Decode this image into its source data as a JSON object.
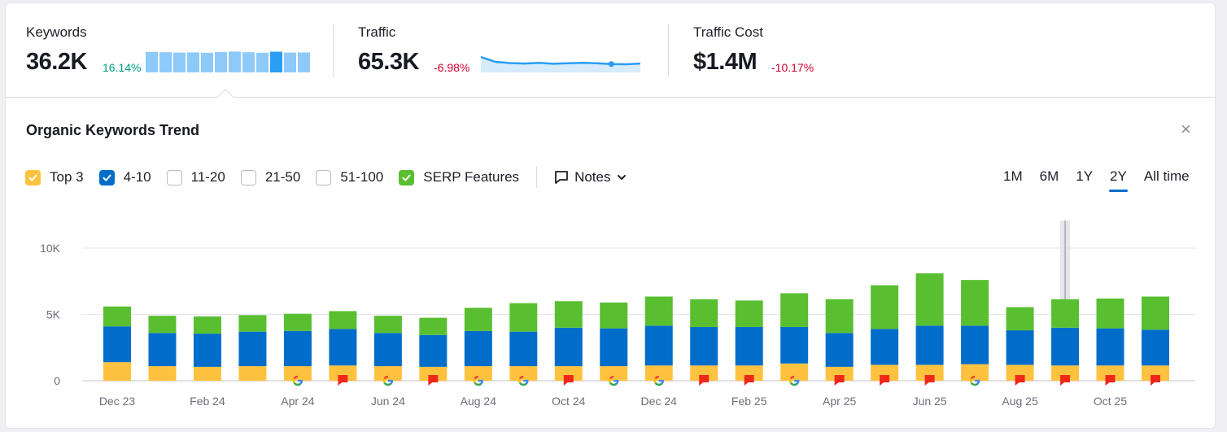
{
  "metrics": {
    "keywords": {
      "label": "Keywords",
      "value": "36.2K",
      "delta": "16.14%",
      "sparkline": [
        11,
        10.8,
        10.6,
        10.7,
        10.5,
        10.9,
        11.2,
        10.8,
        10.5,
        11.1,
        10.6,
        10.7
      ],
      "sparkline_highlight_index": 9
    },
    "traffic": {
      "label": "Traffic",
      "value": "65.3K",
      "delta": "-6.98%",
      "sparkline": [
        62,
        60,
        59.5,
        59.3,
        59.6,
        59.2,
        59.4,
        59.6,
        59.4,
        59.1,
        59.0,
        59.3
      ],
      "sparkline_dot_index": 9
    },
    "traffic_cost": {
      "label": "Traffic Cost",
      "value": "$1.4M",
      "delta": "-10.17%"
    }
  },
  "section": {
    "title": "Organic Keywords Trend",
    "close_symbol": "×"
  },
  "legend": [
    {
      "label": "Top 3",
      "checked": true,
      "color": "#ffc23f"
    },
    {
      "label": "4-10",
      "checked": true,
      "color": "#006dca"
    },
    {
      "label": "11-20",
      "checked": false,
      "color": "#ffffff"
    },
    {
      "label": "21-50",
      "checked": false,
      "color": "#ffffff"
    },
    {
      "label": "51-100",
      "checked": false,
      "color": "#ffffff"
    },
    {
      "label": "SERP Features",
      "checked": true,
      "color": "#59bf31"
    }
  ],
  "notes": {
    "label": "Notes"
  },
  "ranges": [
    {
      "label": "1M",
      "active": false
    },
    {
      "label": "6M",
      "active": false
    },
    {
      "label": "1Y",
      "active": false
    },
    {
      "label": "2Y",
      "active": true
    },
    {
      "label": "All time",
      "active": false
    }
  ],
  "chart_data": {
    "type": "bar",
    "stacked": true,
    "title": "Organic Keywords Trend",
    "ylim": [
      0,
      10000
    ],
    "yticks": [
      0,
      5000,
      10000
    ],
    "ytick_labels": [
      "0",
      "5K",
      "10K"
    ],
    "xtick_labels": [
      "Dec 23",
      "Feb 24",
      "Apr 24",
      "Jun 24",
      "Aug 24",
      "Oct 24",
      "Dec 24",
      "Feb 25",
      "Apr 25",
      "Jun 25",
      "Aug 25",
      "Oct 25"
    ],
    "xtick_every": 2,
    "colors": {
      "top3": "#ffc23f",
      "pos4_10": "#006dca",
      "serp": "#59bf31"
    },
    "series": [
      {
        "name": "Top 3",
        "values": [
          1400,
          1100,
          1050,
          1100,
          1100,
          1150,
          1100,
          1050,
          1100,
          1100,
          1100,
          1100,
          1150,
          1150,
          1150,
          1300,
          1050,
          1200,
          1200,
          1250,
          1200,
          1150,
          1150,
          1150
        ]
      },
      {
        "name": "4-10",
        "values": [
          2700,
          2500,
          2500,
          2600,
          2650,
          2750,
          2500,
          2400,
          2650,
          2600,
          2900,
          2850,
          3000,
          2900,
          2900,
          2750,
          2550,
          2700,
          2950,
          2900,
          2600,
          2850,
          2800,
          2700
        ]
      },
      {
        "name": "SERP Features",
        "values": [
          1500,
          1300,
          1300,
          1250,
          1300,
          1350,
          1300,
          1300,
          1750,
          2150,
          2000,
          1950,
          2200,
          2100,
          2000,
          2550,
          2550,
          3300,
          3950,
          3450,
          1750,
          2150,
          2250,
          2500
        ]
      }
    ],
    "annotations": [
      "",
      "",
      "",
      "",
      "google",
      "flag",
      "google",
      "flag",
      "google",
      "google",
      "flag",
      "google",
      "google",
      "flag",
      "flag",
      "google",
      "flag",
      "flag",
      "flag",
      "google",
      "flag",
      "flag",
      "flag",
      "flag"
    ],
    "hover_index": 21
  }
}
